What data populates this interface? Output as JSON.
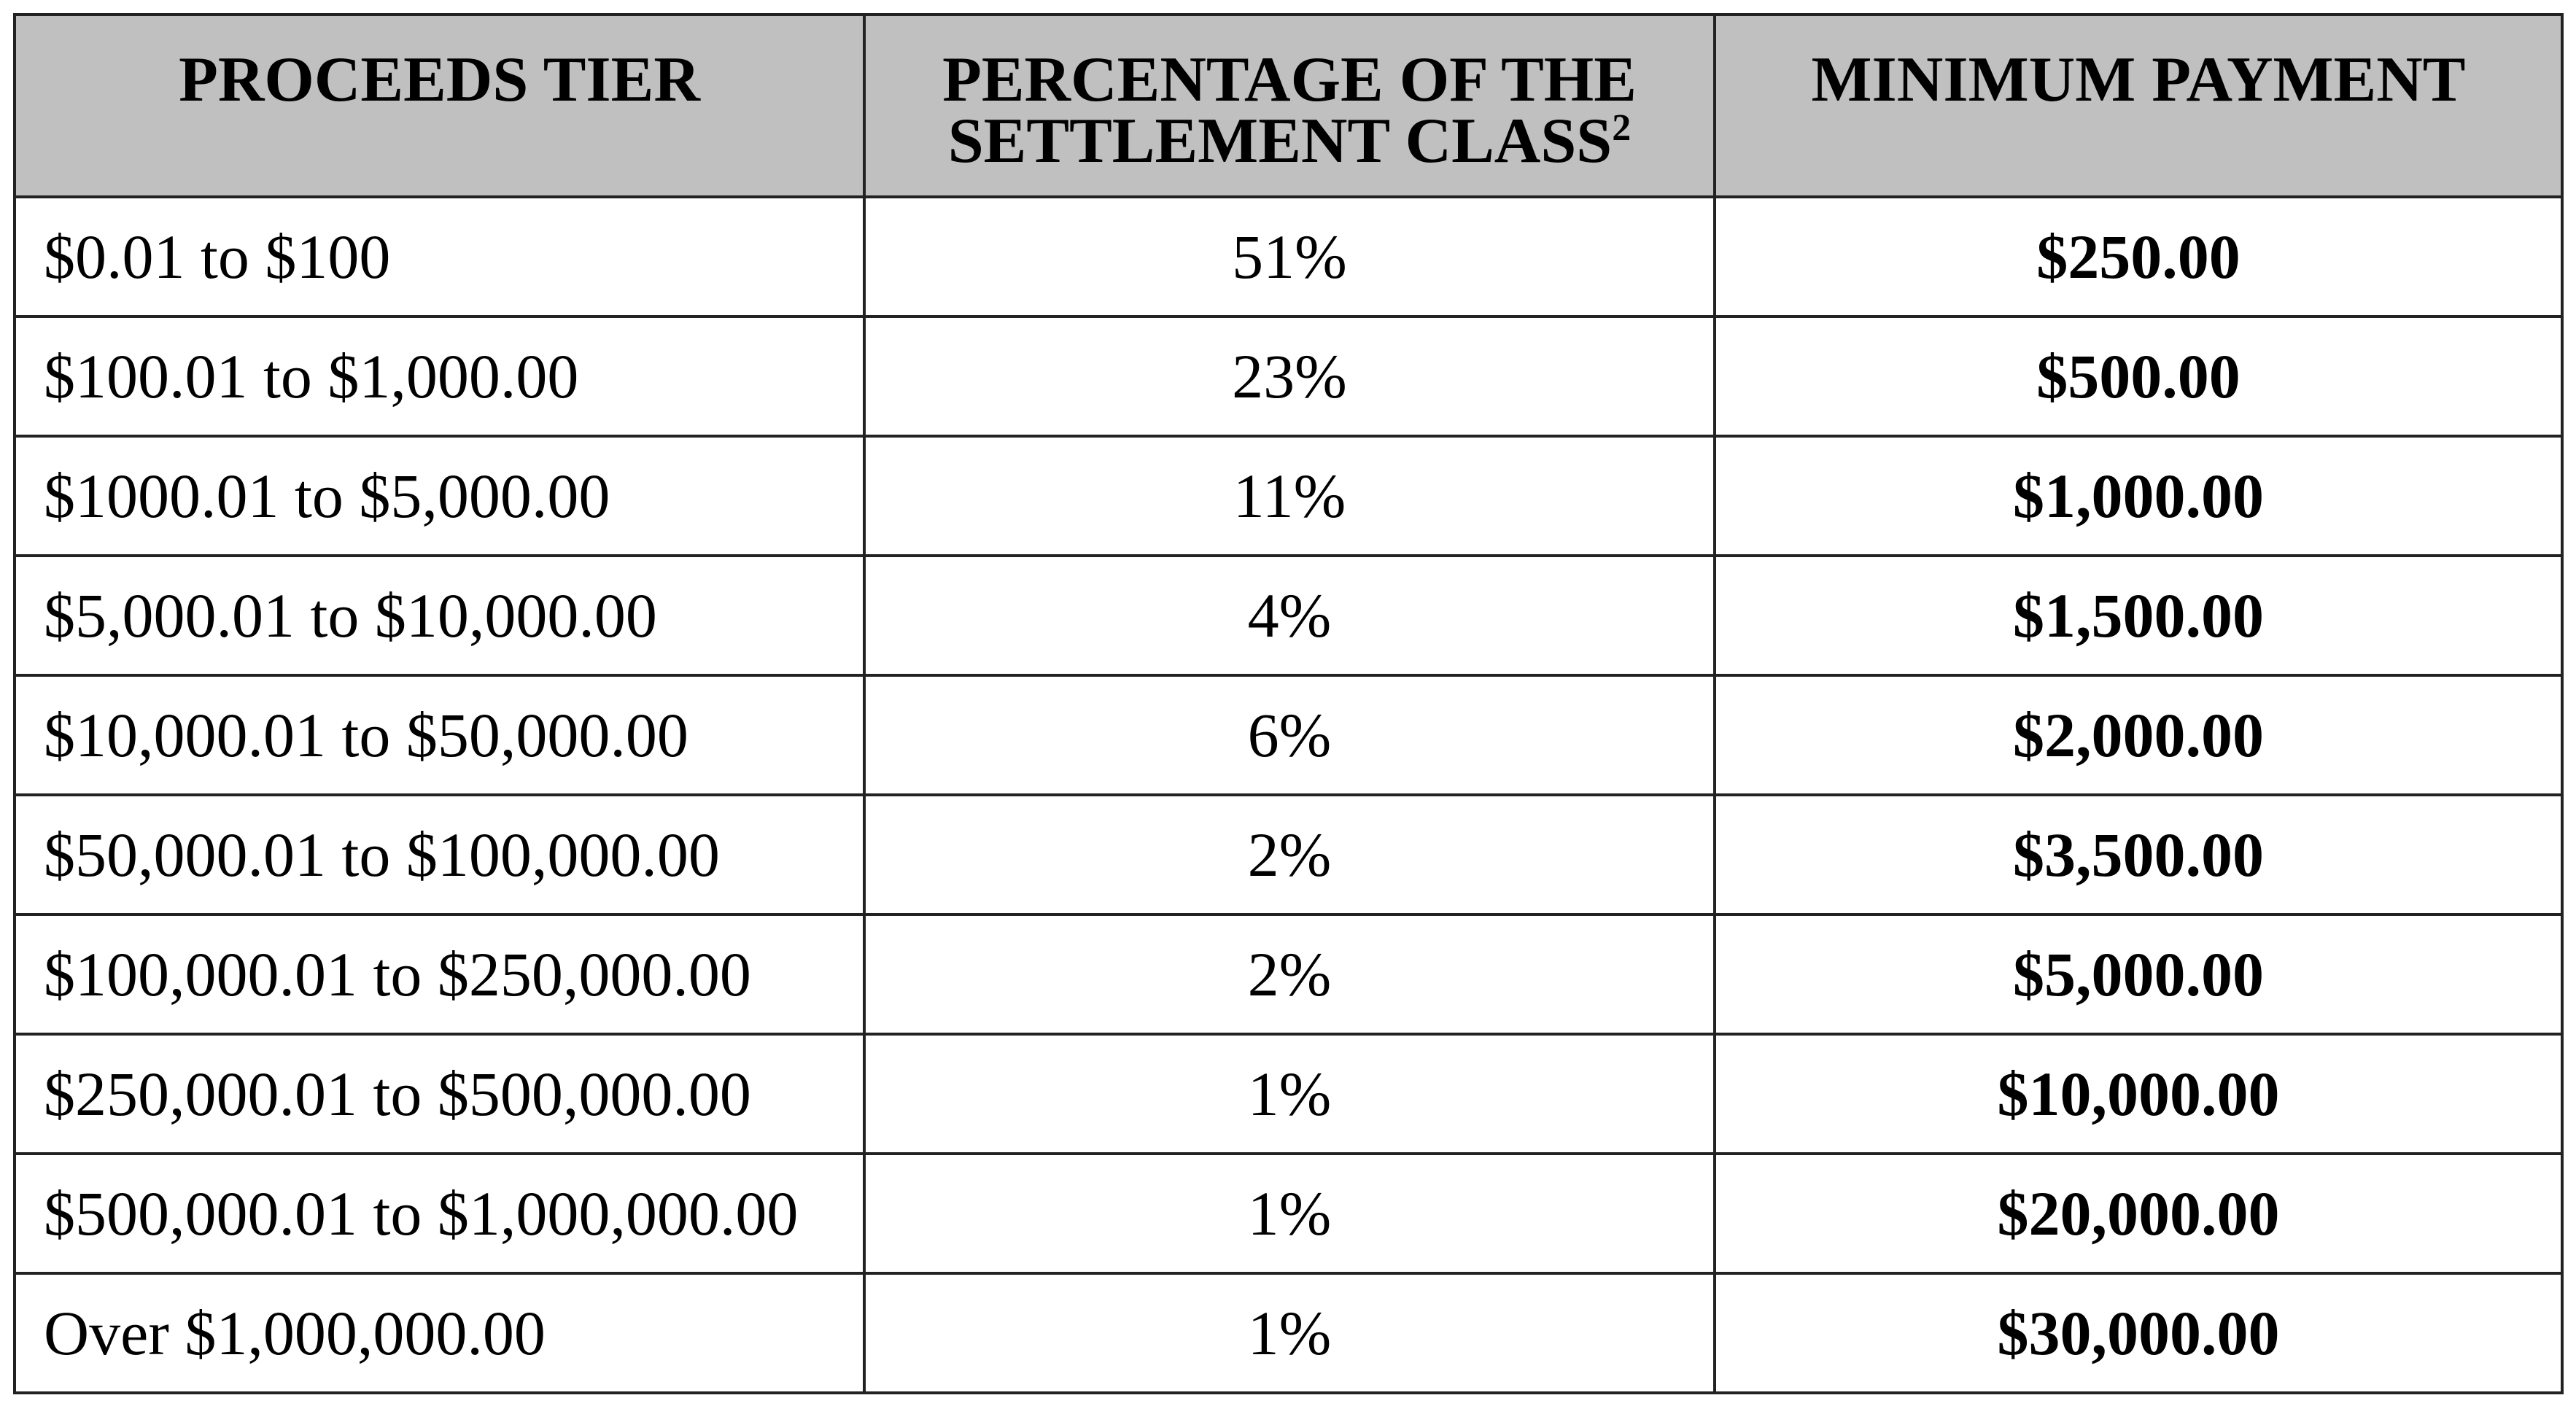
{
  "table": {
    "header": [
      {
        "lines": [
          "PROCEEDS TIER"
        ]
      },
      {
        "lines": [
          "PERCENTAGE OF THE",
          "SETTLEMENT CLASS"
        ],
        "footnote_ref": "2"
      },
      {
        "lines": [
          "MINIMUM PAYMENT"
        ]
      }
    ],
    "rows": [
      [
        "$0.01 to $100",
        "51%",
        "$250.00"
      ],
      [
        "$100.01 to $1,000.00",
        "23%",
        "$500.00"
      ],
      [
        "$1000.01 to $5,000.00",
        "11%",
        "$1,000.00"
      ],
      [
        "$5,000.01 to $10,000.00",
        "4%",
        "$1,500.00"
      ],
      [
        "$10,000.01 to $50,000.00",
        "6%",
        "$2,000.00"
      ],
      [
        "$50,000.01 to $100,000.00",
        "2%",
        "$3,500.00"
      ],
      [
        "$100,000.01 to $250,000.00",
        "2%",
        "$5,000.00"
      ],
      [
        "$250,000.01 to $500,000.00",
        "1%",
        "$10,000.00"
      ],
      [
        "$500,000.01 to $1,000,000.00",
        "1%",
        "$20,000.00"
      ],
      [
        "Over $1,000,000.00",
        "1%",
        "$30,000.00"
      ]
    ]
  }
}
